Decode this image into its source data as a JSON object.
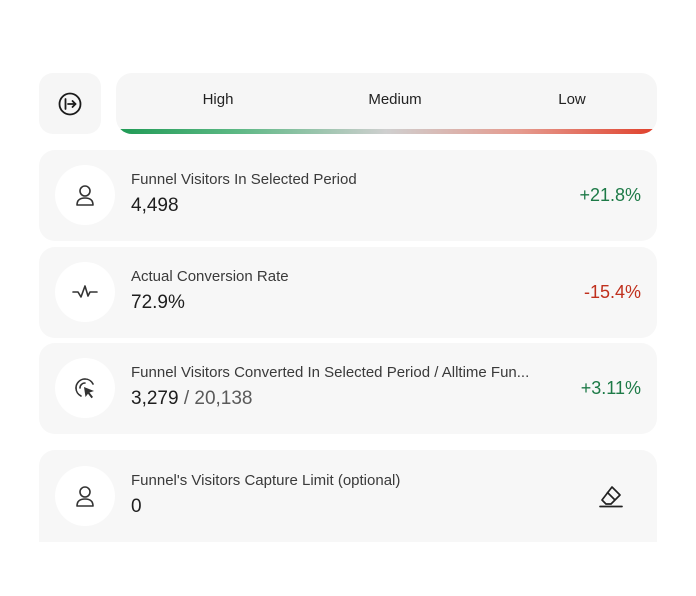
{
  "priority": {
    "levels": [
      "High",
      "Medium",
      "Low"
    ],
    "colors": {
      "high": "#1f9a55",
      "low": "#e0412c"
    }
  },
  "metrics": [
    {
      "title": "Funnel Visitors In Selected Period",
      "value": "4,498",
      "delta": "+21.8%",
      "trend": "positive",
      "icon": "user-icon"
    },
    {
      "title": "Actual Conversion Rate",
      "value": "72.9%",
      "delta": "-15.4%",
      "trend": "negative",
      "icon": "pulse-icon"
    },
    {
      "title": "Funnel Visitors Converted In Selected Period / Alltime Fun...",
      "value": "3,279",
      "value_sep": "/",
      "value_total": "20,138",
      "delta": "+3.11%",
      "trend": "positive",
      "icon": "cursor-click-icon"
    }
  ],
  "capture_limit": {
    "title": "Funnel's Visitors Capture Limit (optional)",
    "value": "0",
    "icon": "user-icon",
    "action_icon": "eraser-icon"
  },
  "colors": {
    "positive": "#1d7a47",
    "negative": "#c0301d",
    "card_bg": "#f7f7f7"
  }
}
